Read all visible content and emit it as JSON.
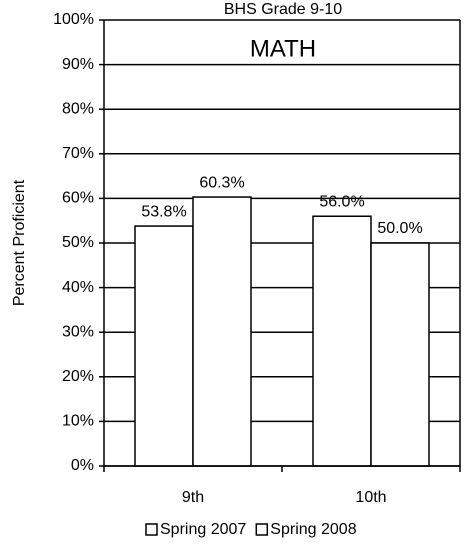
{
  "chart_data": {
    "type": "bar",
    "title": "BHS Grade 9-10",
    "subtitle": "MATH",
    "y_label": "Percent Proficient",
    "categories": [
      "9th",
      "10th"
    ],
    "series": [
      {
        "name": "Spring 2007",
        "color": "#ffffff",
        "values": [
          53.8,
          56.0
        ],
        "value_labels": [
          "53.8%",
          "56.0%"
        ]
      },
      {
        "name": "Spring 2008",
        "color": "#ffffff",
        "values": [
          60.3,
          50.0
        ],
        "value_labels": [
          "60.3%",
          "50.0%"
        ]
      }
    ],
    "ylim": [
      0,
      100
    ],
    "yticks": [
      {
        "value": 0,
        "label": "0%"
      },
      {
        "value": 10,
        "label": "10%"
      },
      {
        "value": 20,
        "label": "20%"
      },
      {
        "value": 30,
        "label": "30%"
      },
      {
        "value": 40,
        "label": "40%"
      },
      {
        "value": 50,
        "label": "50%"
      },
      {
        "value": 60,
        "label": "60%"
      },
      {
        "value": 70,
        "label": "70%"
      },
      {
        "value": 80,
        "label": "80%"
      },
      {
        "value": 90,
        "label": "90%"
      },
      {
        "value": 100,
        "label": "100%"
      }
    ],
    "grid": true,
    "legend": "bottom"
  }
}
